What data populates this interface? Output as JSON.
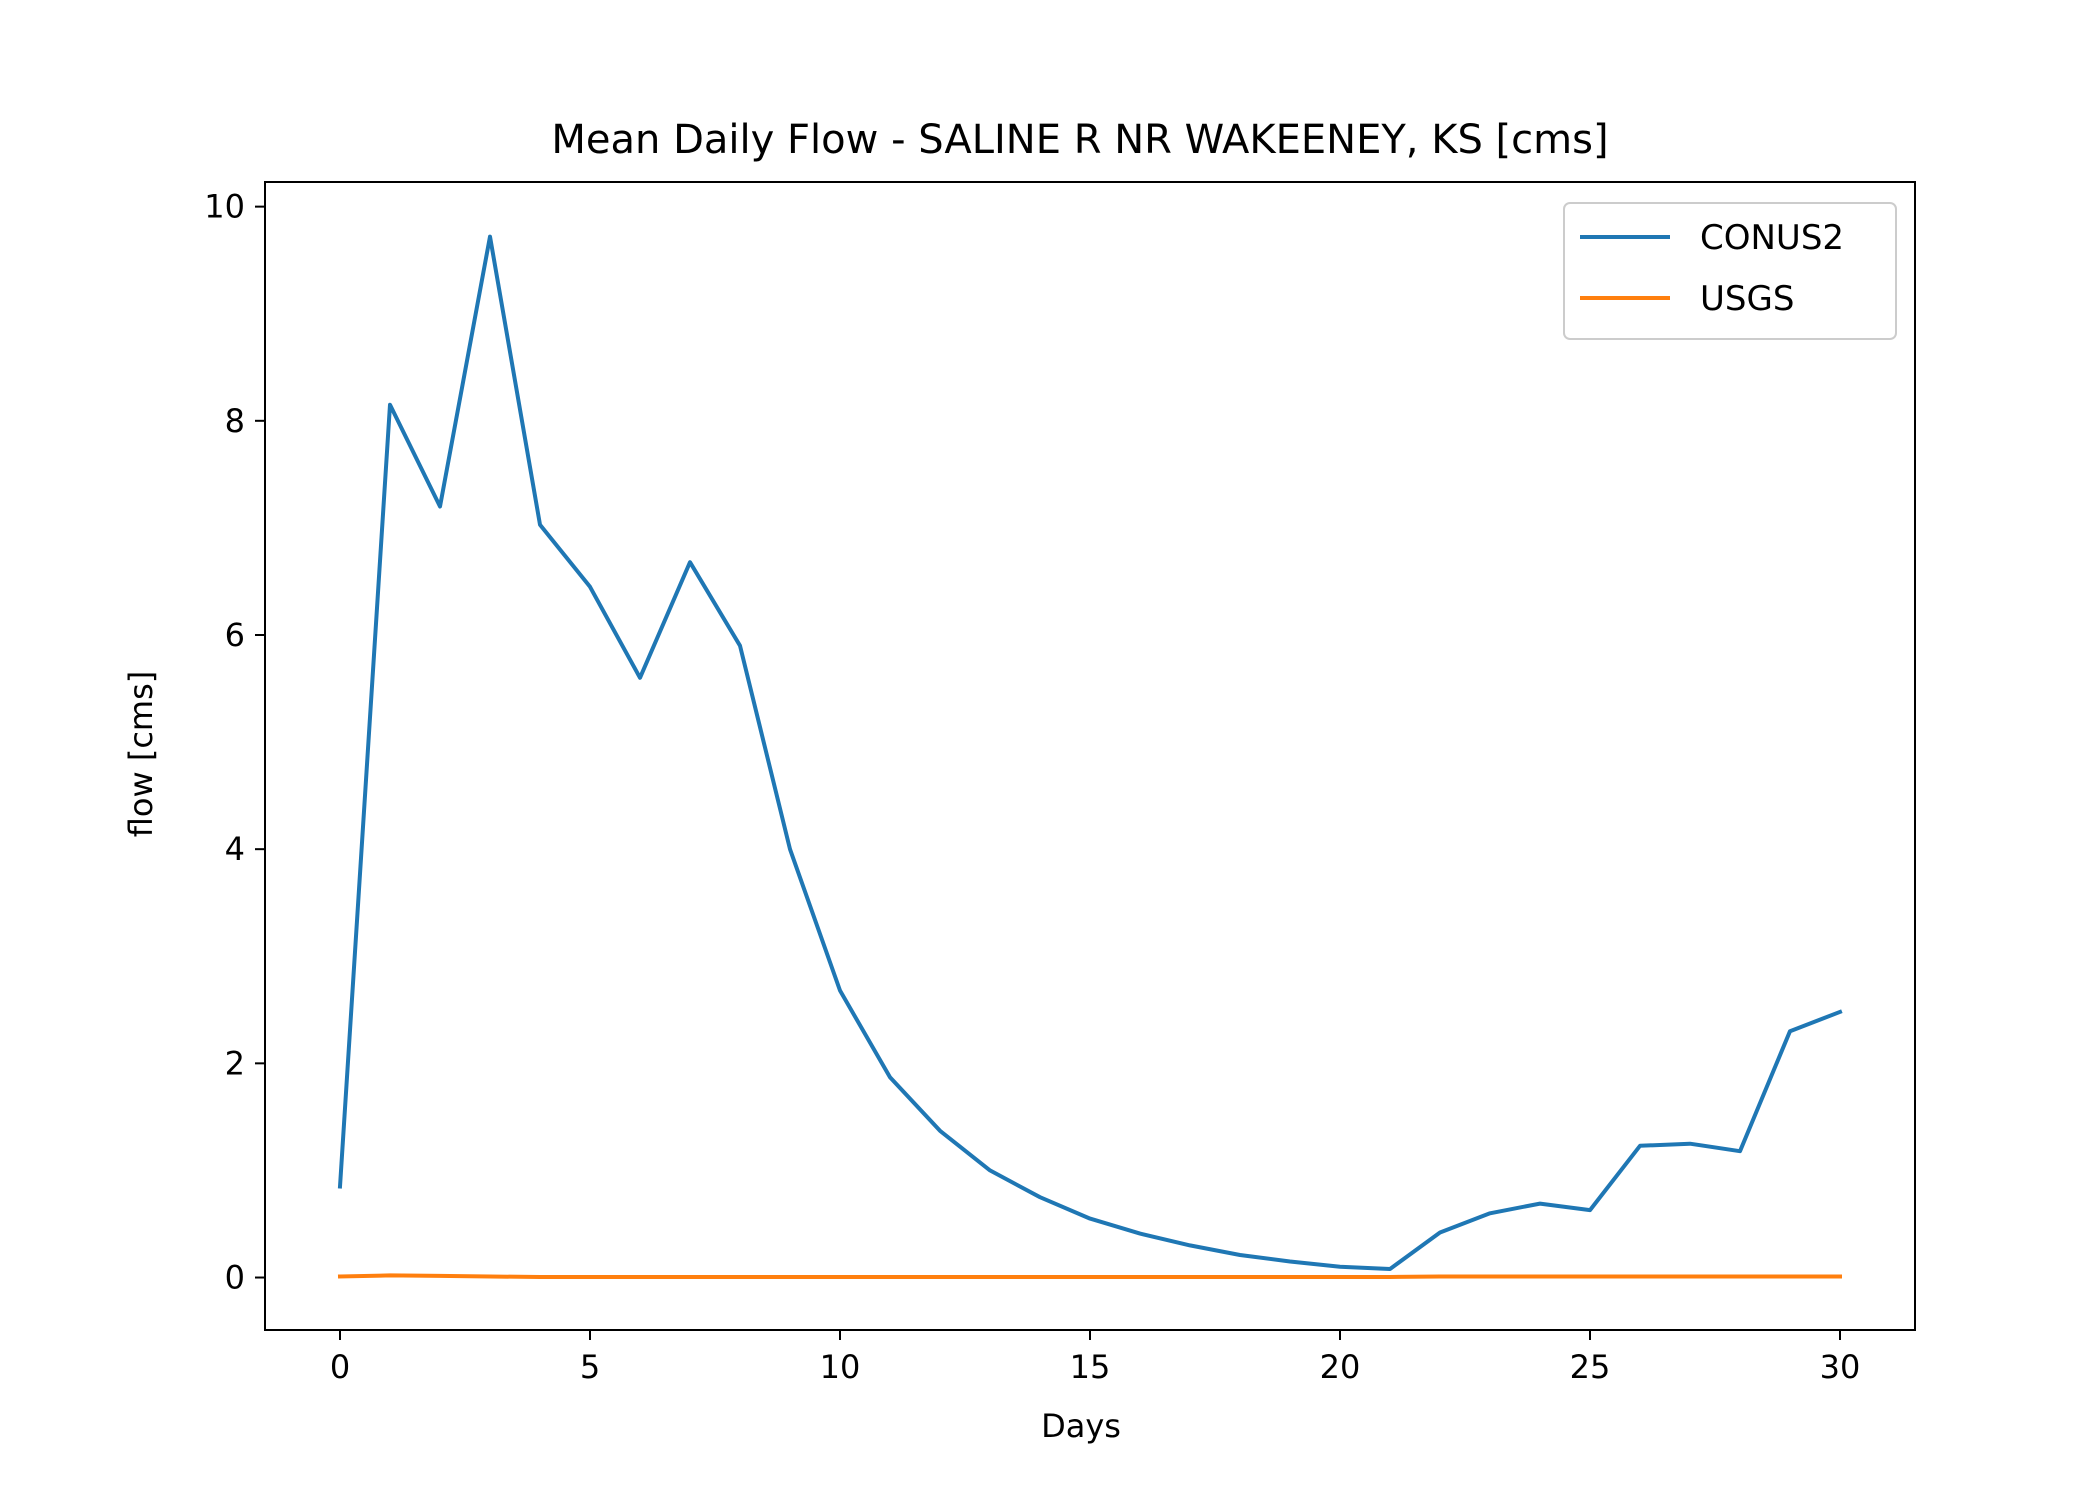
{
  "chart_data": {
    "type": "line",
    "title": "Mean Daily Flow - SALINE R NR WAKEENEY, KS [cms]",
    "xlabel": "Days",
    "ylabel": "flow [cms]",
    "xlim": [
      -1.5,
      31.5
    ],
    "ylim": [
      -0.49,
      10.23
    ],
    "x_ticks": [
      0,
      5,
      10,
      15,
      20,
      25,
      30
    ],
    "y_ticks": [
      0,
      2,
      4,
      6,
      8,
      10
    ],
    "grid": false,
    "legend_position": "top-right",
    "x": [
      0,
      1,
      2,
      3,
      4,
      5,
      6,
      7,
      8,
      9,
      10,
      11,
      12,
      13,
      14,
      15,
      16,
      17,
      18,
      19,
      20,
      21,
      22,
      23,
      24,
      25,
      26,
      27,
      28,
      29,
      30
    ],
    "series": [
      {
        "name": "CONUS2",
        "color": "#1f77b4",
        "values": [
          0.85,
          8.15,
          7.2,
          9.72,
          7.03,
          6.45,
          5.6,
          6.68,
          5.9,
          4.0,
          2.68,
          1.87,
          1.37,
          1.0,
          0.75,
          0.55,
          0.41,
          0.3,
          0.21,
          0.15,
          0.1,
          0.08,
          0.42,
          0.6,
          0.69,
          0.63,
          1.23,
          1.25,
          1.18,
          2.3,
          2.48
        ]
      },
      {
        "name": "USGS",
        "color": "#ff7f0e",
        "values": [
          0.01,
          0.02,
          0.015,
          0.01,
          0.005,
          0.005,
          0.005,
          0.005,
          0.005,
          0.005,
          0.005,
          0.005,
          0.005,
          0.005,
          0.005,
          0.005,
          0.005,
          0.005,
          0.005,
          0.005,
          0.005,
          0.005,
          0.01,
          0.01,
          0.01,
          0.01,
          0.01,
          0.01,
          0.01,
          0.01,
          0.01
        ]
      }
    ]
  }
}
